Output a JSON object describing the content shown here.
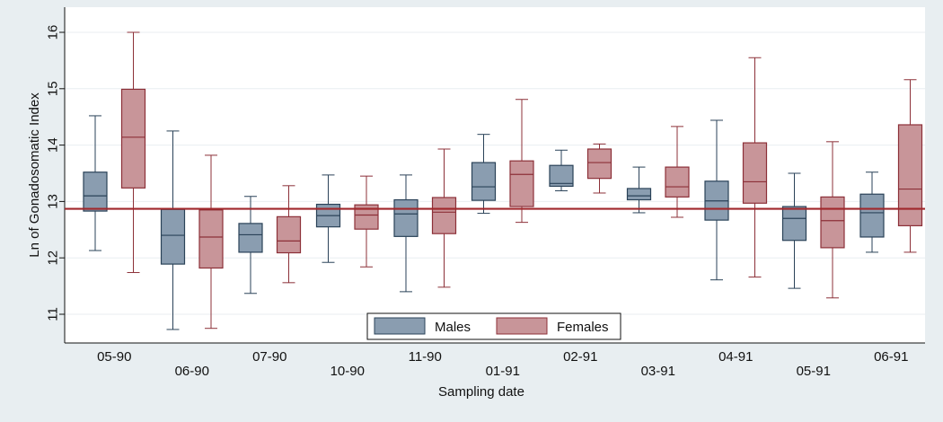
{
  "chart_data": {
    "type": "box",
    "xlabel": "Sampling date",
    "ylabel": "Ln of Gonadosomatic Index",
    "ylim": [
      10.55,
      16.25
    ],
    "yticks": [
      11,
      12,
      13,
      14,
      15,
      16
    ],
    "grid": true,
    "legend_position": "bottom-center",
    "reference_line": {
      "value": 12.87,
      "color": "#a0282c"
    },
    "colors": {
      "background": "#e8eef1",
      "plot_background": "#ffffff",
      "grid": "#e9eef1",
      "males_fill": "#8a9db0",
      "males_stroke": "#2a4258",
      "females_fill": "#c89599",
      "females_stroke": "#8c3038"
    },
    "categories": [
      "05-90",
      "06-90",
      "07-90",
      "10-90",
      "11-90",
      "01-91",
      "02-91",
      "03-91",
      "04-91",
      "05-91",
      "06-91"
    ],
    "series": [
      {
        "name": "Males",
        "boxes": [
          {
            "min": 12.13,
            "q1": 12.83,
            "median": 13.1,
            "q3": 13.52,
            "max": 14.52
          },
          {
            "min": 10.73,
            "q1": 11.89,
            "median": 12.4,
            "q3": 12.86,
            "max": 14.25
          },
          {
            "min": 11.37,
            "q1": 12.1,
            "median": 12.41,
            "q3": 12.61,
            "max": 13.09
          },
          {
            "min": 11.92,
            "q1": 12.55,
            "median": 12.75,
            "q3": 12.95,
            "max": 13.47
          },
          {
            "min": 11.4,
            "q1": 12.38,
            "median": 12.78,
            "q3": 13.03,
            "max": 13.47
          },
          {
            "min": 12.79,
            "q1": 13.02,
            "median": 13.26,
            "q3": 13.69,
            "max": 14.19
          },
          {
            "min": 13.19,
            "q1": 13.27,
            "median": 13.32,
            "q3": 13.64,
            "max": 13.91
          },
          {
            "min": 12.8,
            "q1": 13.03,
            "median": 13.1,
            "q3": 13.23,
            "max": 13.61
          },
          {
            "min": 11.61,
            "q1": 12.67,
            "median": 13.01,
            "q3": 13.36,
            "max": 14.44
          },
          {
            "min": 11.46,
            "q1": 12.31,
            "median": 12.7,
            "q3": 12.91,
            "max": 13.5
          },
          {
            "min": 12.1,
            "q1": 12.37,
            "median": 12.8,
            "q3": 13.13,
            "max": 13.52
          }
        ]
      },
      {
        "name": "Females",
        "boxes": [
          {
            "min": 11.74,
            "q1": 13.24,
            "median": 14.14,
            "q3": 14.99,
            "max": 16.0
          },
          {
            "min": 10.75,
            "q1": 11.82,
            "median": 12.37,
            "q3": 12.85,
            "max": 13.82
          },
          {
            "min": 11.56,
            "q1": 12.09,
            "median": 12.3,
            "q3": 12.73,
            "max": 13.28
          },
          {
            "min": 11.84,
            "q1": 12.51,
            "median": 12.76,
            "q3": 12.94,
            "max": 13.45
          },
          {
            "min": 11.48,
            "q1": 12.43,
            "median": 12.81,
            "q3": 13.07,
            "max": 13.93
          },
          {
            "min": 12.63,
            "q1": 12.91,
            "median": 13.48,
            "q3": 13.72,
            "max": 14.81
          },
          {
            "min": 13.15,
            "q1": 13.41,
            "median": 13.69,
            "q3": 13.93,
            "max": 14.02
          },
          {
            "min": 12.72,
            "q1": 13.08,
            "median": 13.26,
            "q3": 13.61,
            "max": 14.33
          },
          {
            "min": 11.66,
            "q1": 12.97,
            "median": 13.35,
            "q3": 14.04,
            "max": 15.55
          },
          {
            "min": 11.29,
            "q1": 12.18,
            "median": 12.66,
            "q3": 13.08,
            "max": 14.06
          },
          {
            "min": 12.1,
            "q1": 12.57,
            "median": 13.22,
            "q3": 14.36,
            "max": 15.16
          }
        ]
      }
    ]
  }
}
